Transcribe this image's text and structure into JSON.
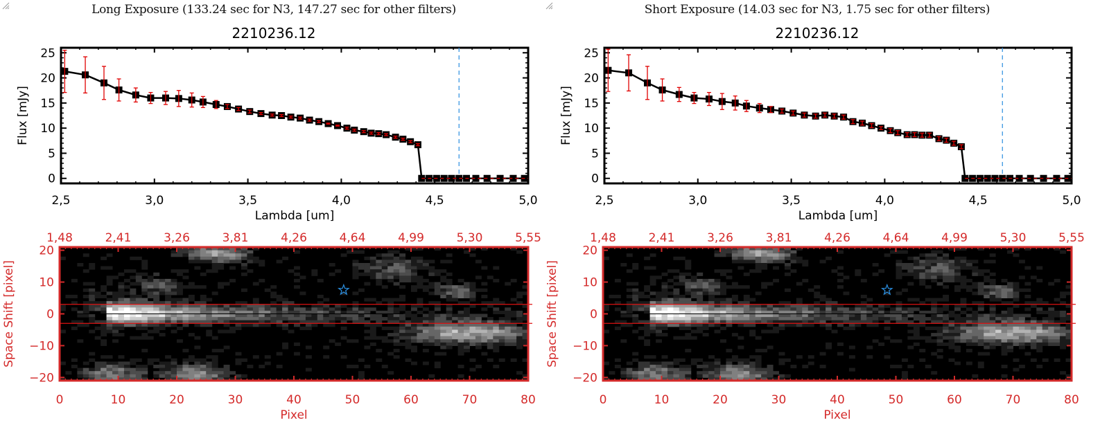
{
  "colors": {
    "axis": "#000000",
    "errorbar": "#e00000",
    "marker": "#000000",
    "guide_line": "#2a8ee0",
    "image_axis": "#d42a2a",
    "aperture": "#dd1111",
    "star": "#2a8ee0"
  },
  "panels": [
    {
      "id": "long",
      "exposure_title": "Long Exposure (133.24 sec for N3, 147.27 sec for other filters)",
      "object_title": "2210236.12"
    },
    {
      "id": "short",
      "exposure_title": "Short Exposure (14.03 sec for N3, 1.75 sec for other filters)",
      "object_title": "2210236.12"
    }
  ],
  "chart_data": [
    {
      "type": "line",
      "panel": "long",
      "title": "2210236.12",
      "xlabel": "Lambda [um]",
      "ylabel": "Flux [mJy]",
      "xlim": [
        2.5,
        5.0
      ],
      "ylim": [
        -1,
        26
      ],
      "xticks": [
        "2.5",
        "3.0",
        "3.5",
        "4.0",
        "4.5",
        "5.0"
      ],
      "yticks": [
        "0",
        "5",
        "10",
        "15",
        "20",
        "25"
      ],
      "vline_x": 4.63,
      "hline_y": 0,
      "series": [
        {
          "name": "flux",
          "x": [
            2.52,
            2.63,
            2.73,
            2.81,
            2.9,
            2.98,
            3.06,
            3.13,
            3.2,
            3.26,
            3.33,
            3.39,
            3.45,
            3.51,
            3.57,
            3.63,
            3.68,
            3.73,
            3.78,
            3.83,
            3.88,
            3.93,
            3.98,
            4.03,
            4.07,
            4.12,
            4.16,
            4.2,
            4.24,
            4.29,
            4.33,
            4.37,
            4.41,
            4.43,
            4.47,
            4.51,
            4.55,
            4.59,
            4.63,
            4.67,
            4.72,
            4.78,
            4.85,
            4.92,
            4.98
          ],
          "y": [
            21.3,
            20.6,
            19.0,
            17.6,
            16.6,
            16.0,
            16.0,
            15.9,
            15.6,
            15.2,
            14.7,
            14.3,
            13.8,
            13.3,
            12.9,
            12.6,
            12.5,
            12.2,
            12.0,
            11.6,
            11.3,
            10.9,
            10.5,
            10.0,
            9.6,
            9.3,
            9.0,
            8.9,
            8.7,
            8.2,
            7.8,
            7.3,
            6.7,
            0,
            0,
            0,
            0,
            0,
            0,
            0,
            0,
            0,
            0,
            0,
            0
          ],
          "err": [
            4.2,
            3.6,
            3.3,
            2.2,
            1.4,
            1.1,
            1.3,
            1.6,
            1.4,
            1.1,
            0.8,
            0.4,
            0.3,
            0.3,
            0.2,
            0.2,
            0.2,
            0.2,
            0.2,
            0.2,
            0.2,
            0.1,
            0.1,
            0.2,
            0.2,
            0.2,
            0.2,
            0.2,
            0.2,
            0.2,
            0.2,
            0.2,
            0.2,
            0,
            0,
            0,
            0,
            0,
            0,
            0,
            0,
            0,
            0,
            0,
            0
          ]
        }
      ]
    },
    {
      "type": "line",
      "panel": "short",
      "title": "2210236.12",
      "xlabel": "Lambda [um]",
      "ylabel": "Flux [mJy]",
      "xlim": [
        2.5,
        5.0
      ],
      "ylim": [
        -1,
        26
      ],
      "xticks": [
        "2.5",
        "3.0",
        "3.5",
        "4.0",
        "4.5",
        "5.0"
      ],
      "yticks": [
        "0",
        "5",
        "10",
        "15",
        "20",
        "25"
      ],
      "vline_x": 4.63,
      "hline_y": 0,
      "series": [
        {
          "name": "flux",
          "x": [
            2.52,
            2.63,
            2.73,
            2.81,
            2.9,
            2.98,
            3.06,
            3.13,
            3.2,
            3.26,
            3.33,
            3.39,
            3.45,
            3.51,
            3.57,
            3.63,
            3.68,
            3.73,
            3.78,
            3.83,
            3.88,
            3.93,
            3.98,
            4.03,
            4.07,
            4.12,
            4.16,
            4.2,
            4.24,
            4.29,
            4.33,
            4.37,
            4.41,
            4.43,
            4.47,
            4.51,
            4.55,
            4.59,
            4.63,
            4.67,
            4.72,
            4.78,
            4.85,
            4.92,
            4.98
          ],
          "y": [
            21.5,
            21.0,
            19.0,
            17.6,
            16.7,
            16.0,
            15.8,
            15.3,
            15.0,
            14.4,
            14.0,
            13.7,
            13.4,
            13.0,
            12.6,
            12.4,
            12.6,
            12.4,
            12.2,
            11.3,
            11.0,
            10.5,
            10.0,
            9.5,
            9.1,
            8.7,
            8.7,
            8.6,
            8.6,
            7.9,
            7.6,
            7.0,
            6.3,
            0,
            0,
            0,
            0,
            0,
            0,
            0,
            0,
            0,
            0,
            0,
            0
          ],
          "err": [
            4.2,
            3.6,
            3.3,
            2.2,
            1.4,
            1.1,
            1.3,
            1.6,
            1.4,
            1.1,
            0.9,
            0.6,
            0.4,
            0.4,
            0.4,
            0.4,
            0.4,
            0.4,
            0.4,
            0.4,
            0.4,
            0.4,
            0.3,
            0.4,
            0.4,
            0.4,
            0.4,
            0.4,
            0.4,
            0.4,
            0.4,
            0.4,
            0.4,
            0,
            0,
            0,
            0,
            0,
            0,
            0,
            0,
            0,
            0,
            0,
            0
          ]
        }
      ]
    },
    {
      "type": "heatmap",
      "panel": "long",
      "xlabel": "Pixel",
      "ylabel": "Space Shift [pixel]",
      "xlim": [
        0,
        80
      ],
      "ylim": [
        -21,
        21
      ],
      "xticks": [
        "0",
        "10",
        "20",
        "30",
        "40",
        "50",
        "60",
        "70",
        "80"
      ],
      "yticks": [
        "-20",
        "-10",
        "0",
        "10",
        "20"
      ],
      "top_axis_ticks": [
        "1.48",
        "2.41",
        "3.26",
        "3.81",
        "4.26",
        "4.64",
        "4.99",
        "5.30",
        "5.55"
      ],
      "aperture_lines_y": [
        3,
        -3
      ],
      "center_line_y": 0,
      "star_marker": {
        "x": 48.5,
        "y": 7.5
      }
    },
    {
      "type": "heatmap",
      "panel": "short",
      "xlabel": "Pixel",
      "ylabel": "Space Shift [pixel]",
      "xlim": [
        0,
        80
      ],
      "ylim": [
        -21,
        21
      ],
      "xticks": [
        "0",
        "10",
        "20",
        "30",
        "40",
        "50",
        "60",
        "70",
        "80"
      ],
      "yticks": [
        "-20",
        "-10",
        "0",
        "10",
        "20"
      ],
      "top_axis_ticks": [
        "1.48",
        "2.41",
        "3.26",
        "3.81",
        "4.26",
        "4.64",
        "4.99",
        "5.30",
        "5.55"
      ],
      "aperture_lines_y": [
        3,
        -3
      ],
      "center_line_y": 0,
      "star_marker": {
        "x": 48.5,
        "y": 7.5
      }
    }
  ]
}
